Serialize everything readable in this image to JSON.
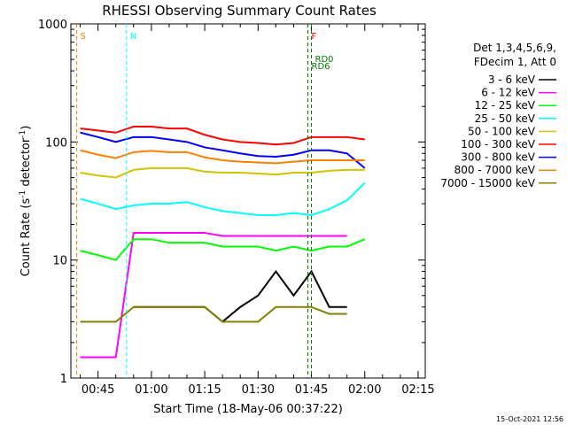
{
  "chart_data": {
    "type": "line",
    "title": "RHESSI Observing Summary Count Rates",
    "xlabel": "Start Time (18-May-06 00:37:22)",
    "ylabel": "Count Rate (s⁻¹ detector⁻¹)",
    "ylabel_main": "Count Rate (s",
    "ylabel_sup1": "-1",
    "ylabel_mid": " detector",
    "ylabel_sup2": "-1",
    "ylabel_end": ")",
    "yscale": "log",
    "ylim": [
      1,
      1000
    ],
    "xlim": [
      "00:37:22",
      "02:17:00"
    ],
    "x_ticks": [
      "00:45",
      "01:00",
      "01:15",
      "01:30",
      "01:45",
      "02:00",
      "02:15"
    ],
    "y_ticks": [
      "1",
      "10",
      "100",
      "1000"
    ],
    "legend_header": [
      "Det 1,3,4,5,6,9,",
      "FDecim 1, Att 0"
    ],
    "legend_placement": "right",
    "footer": "15-Oct-2021 12:56",
    "series": [
      {
        "name": "3 - 6 keV",
        "color": "#000000",
        "x": [
          "00:55",
          "01:00",
          "01:05",
          "01:10",
          "01:15",
          "01:20",
          "01:25",
          "01:30",
          "01:35",
          "01:40",
          "01:45",
          "01:50",
          "01:55"
        ],
        "values": [
          4,
          4,
          4,
          4,
          4,
          3,
          4,
          5,
          8,
          5,
          8,
          4,
          4
        ]
      },
      {
        "name": "6 - 12 keV",
        "color": "#ff00ff",
        "x": [
          "00:40",
          "00:45",
          "00:50",
          "00:55",
          "01:00",
          "01:05",
          "01:10",
          "01:15",
          "01:20",
          "01:25",
          "01:30",
          "01:35",
          "01:40",
          "01:45",
          "01:50",
          "01:55"
        ],
        "values": [
          1.5,
          1.5,
          1.5,
          17,
          17,
          17,
          17,
          17,
          16,
          16,
          16,
          16,
          16,
          16,
          16,
          16
        ]
      },
      {
        "name": "12 - 25 keV",
        "color": "#00ff00",
        "x": [
          "00:40",
          "00:45",
          "00:50",
          "00:55",
          "01:00",
          "01:05",
          "01:10",
          "01:15",
          "01:20",
          "01:25",
          "01:30",
          "01:35",
          "01:40",
          "01:45",
          "01:50",
          "01:55",
          "02:00"
        ],
        "values": [
          12,
          11,
          10,
          15,
          15,
          14,
          14,
          14,
          13,
          13,
          13,
          12,
          13,
          12,
          13,
          13,
          15
        ]
      },
      {
        "name": "25 - 50 keV",
        "color": "#00ffff",
        "x": [
          "00:40",
          "00:45",
          "00:50",
          "00:55",
          "01:00",
          "01:05",
          "01:10",
          "01:15",
          "01:20",
          "01:25",
          "01:30",
          "01:35",
          "01:40",
          "01:45",
          "01:50",
          "01:55",
          "02:00"
        ],
        "values": [
          33,
          30,
          27,
          29,
          30,
          30,
          31,
          28,
          26,
          25,
          24,
          24,
          25,
          24,
          27,
          32,
          45
        ]
      },
      {
        "name": "50 - 100 keV",
        "color": "#d4c400",
        "x": [
          "00:40",
          "00:45",
          "00:50",
          "00:55",
          "01:00",
          "01:05",
          "01:10",
          "01:15",
          "01:20",
          "01:25",
          "01:30",
          "01:35",
          "01:40",
          "01:45",
          "01:50",
          "01:55",
          "02:00"
        ],
        "values": [
          55,
          52,
          50,
          58,
          60,
          60,
          60,
          56,
          55,
          55,
          54,
          53,
          55,
          55,
          57,
          58,
          58
        ]
      },
      {
        "name": "100 - 300 keV",
        "color": "#ff0000",
        "x": [
          "00:40",
          "00:45",
          "00:50",
          "00:55",
          "01:00",
          "01:05",
          "01:10",
          "01:15",
          "01:20",
          "01:25",
          "01:30",
          "01:35",
          "01:40",
          "01:45",
          "01:50",
          "01:55",
          "02:00"
        ],
        "values": [
          130,
          125,
          120,
          135,
          135,
          130,
          130,
          115,
          105,
          100,
          98,
          95,
          98,
          110,
          110,
          110,
          105
        ]
      },
      {
        "name": "300 - 800 keV",
        "color": "#0000ff",
        "x": [
          "00:40",
          "00:45",
          "00:50",
          "00:55",
          "01:00",
          "01:05",
          "01:10",
          "01:15",
          "01:20",
          "01:25",
          "01:30",
          "01:35",
          "01:40",
          "01:45",
          "01:50",
          "01:55",
          "02:00"
        ],
        "values": [
          120,
          110,
          100,
          110,
          110,
          105,
          100,
          90,
          85,
          80,
          76,
          75,
          78,
          85,
          85,
          80,
          60
        ]
      },
      {
        "name": "800 - 7000 keV",
        "color": "#ff8000",
        "x": [
          "00:40",
          "00:45",
          "00:50",
          "00:55",
          "01:00",
          "01:05",
          "01:10",
          "01:15",
          "01:20",
          "01:25",
          "01:30",
          "01:35",
          "01:40",
          "01:45",
          "01:50",
          "01:55",
          "02:00"
        ],
        "values": [
          85,
          78,
          73,
          82,
          84,
          82,
          82,
          74,
          70,
          68,
          67,
          66,
          68,
          70,
          70,
          70,
          70
        ]
      },
      {
        "name": "7000 - 15000 keV",
        "color": "#808000",
        "x": [
          "00:40",
          "00:45",
          "00:50",
          "00:55",
          "01:00",
          "01:05",
          "01:10",
          "01:15",
          "01:20",
          "01:25",
          "01:30",
          "01:35",
          "01:40",
          "01:45",
          "01:50",
          "01:55"
        ],
        "values": [
          3,
          3,
          3,
          4,
          4,
          4,
          4,
          4,
          3,
          3,
          3,
          4,
          4,
          4,
          3.5,
          3.5
        ]
      }
    ],
    "annotations": [
      {
        "label": "S",
        "color": "#ff8000",
        "x": "00:39"
      },
      {
        "label": "N",
        "color": "#00ffff",
        "x": "00:53"
      },
      {
        "label": "F",
        "color": "#ff0000",
        "x": "01:44"
      },
      {
        "label": "RD0",
        "color": "#008000",
        "x": "01:45"
      },
      {
        "label": "RD6",
        "color": "#008000",
        "x": "01:44"
      }
    ]
  }
}
